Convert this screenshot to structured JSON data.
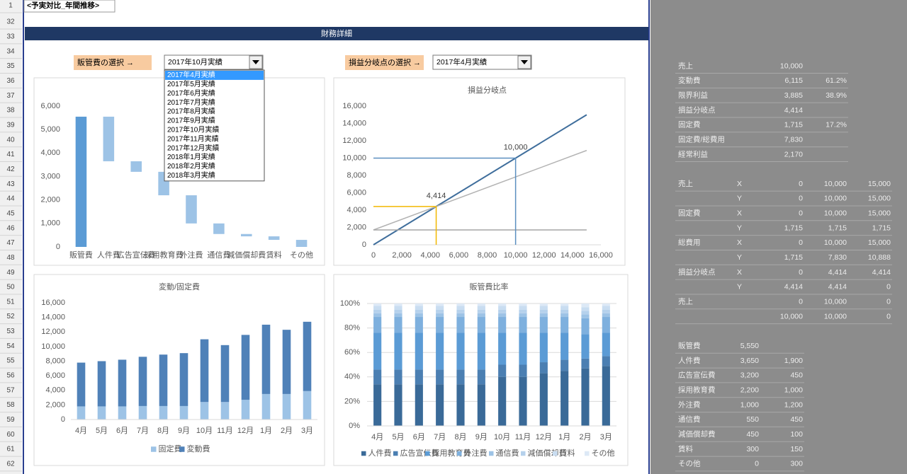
{
  "sheet": {
    "row_numbers": [
      1,
      32,
      33,
      34,
      35,
      36,
      37,
      38,
      39,
      40,
      41,
      42,
      43,
      44,
      45,
      46,
      47,
      48,
      49,
      50,
      51,
      52,
      53,
      54,
      55,
      56,
      57,
      58,
      59,
      60,
      61,
      62
    ],
    "title": "<予実対比_年間推移>",
    "banner": "財務詳細"
  },
  "controls": {
    "sga_label": "販管費の選択 →",
    "sga_selected": "2017年10月実績",
    "sga_options": [
      "2017年4月実績",
      "2017年5月実績",
      "2017年6月実績",
      "2017年7月実績",
      "2017年8月実績",
      "2017年9月実績",
      "2017年10月実績",
      "2017年11月実績",
      "2017年12月実績",
      "2018年1月実績",
      "2018年2月実績",
      "2018年3月実績"
    ],
    "be_label": "損益分岐点の選択 →",
    "be_selected": "2017年4月実績"
  },
  "chart_data": [
    {
      "type": "waterfall",
      "categories": [
        "販管費",
        "人件費",
        "広告宣伝費",
        "採用教育費",
        "外注費",
        "通信費",
        "減価償却費",
        "賃料",
        "その他"
      ],
      "bases": [
        0,
        3650,
        3200,
        2200,
        1000,
        550,
        450,
        300,
        0
      ],
      "values": [
        5550,
        1900,
        450,
        1000,
        1200,
        450,
        100,
        150,
        300
      ],
      "total_color": "#5b9bd5",
      "color": "#9dc3e6",
      "ylim": [
        0,
        6000
      ],
      "yticks": [
        0,
        {
          "value": 1000,
          "label": "1,000"
        },
        {
          "value": 2000,
          "label": "2,000"
        },
        {
          "value": 3000,
          "label": "3,000"
        },
        {
          "value": 4000,
          "label": "4,000"
        },
        {
          "value": 5000,
          "label": "5,000"
        },
        {
          "value": 6000,
          "label": "6,000"
        }
      ],
      "grid": false
    },
    {
      "type": "line",
      "title": "損益分岐点",
      "xlim": [
        0,
        16000
      ],
      "xticks": [
        0,
        {
          "value": 2000,
          "label": "2,000"
        },
        {
          "value": 4000,
          "label": "4,000"
        },
        {
          "value": 6000,
          "label": "6,000"
        },
        {
          "value": 8000,
          "label": "8,000"
        },
        {
          "value": 10000,
          "label": "10,000"
        },
        {
          "value": 12000,
          "label": "12,000"
        },
        {
          "value": 14000,
          "label": "14,000"
        },
        {
          "value": 16000,
          "label": "16,000"
        }
      ],
      "ylim": [
        0,
        16000
      ],
      "yticks": [
        0,
        {
          "value": 2000,
          "label": "2,000"
        },
        {
          "value": 4000,
          "label": "4,000"
        },
        {
          "value": 6000,
          "label": "6,000"
        },
        {
          "value": 8000,
          "label": "8,000"
        },
        {
          "value": 10000,
          "label": "10,000"
        },
        {
          "value": 12000,
          "label": "12,000"
        },
        {
          "value": 14000,
          "label": "14,000"
        },
        {
          "value": 16000,
          "label": "16,000"
        }
      ],
      "grid": false,
      "series": [
        {
          "color": "#3f6e9c",
          "x": [
            0,
            15000
          ],
          "values": [
            0,
            15000
          ]
        },
        {
          "color": "#b3b3b3",
          "x": [
            0,
            15000
          ],
          "values": [
            1715,
            10888
          ]
        },
        {
          "color": "#a6a6a6",
          "x": [
            0,
            15000
          ],
          "values": [
            1715,
            1715
          ]
        },
        {
          "color": "#f2b800",
          "x": [
            0,
            4414,
            4414
          ],
          "values": [
            4414,
            4414,
            0
          ],
          "value_labels": [
            null,
            "4,414",
            null
          ]
        },
        {
          "color": "#5b8fc0",
          "x": [
            0,
            10000,
            10000
          ],
          "values": [
            10000,
            10000,
            0
          ],
          "value_labels": [
            null,
            "10,000",
            null
          ]
        }
      ]
    },
    {
      "type": "stacked_bar",
      "title": "変動/固定費",
      "categories": [
        "4月",
        "5月",
        "6月",
        "7月",
        "8月",
        "9月",
        "10月",
        "11月",
        "12月",
        "1月",
        "2月",
        "3月"
      ],
      "series": [
        {
          "name": "固定費",
          "color": "#9dc3e6",
          "values": [
            1800,
            1800,
            1800,
            1850,
            1850,
            1850,
            2400,
            2400,
            2700,
            3500,
            3500,
            3900
          ]
        },
        {
          "name": "変動費",
          "color": "#4f81b8",
          "values": [
            6000,
            6200,
            6400,
            6750,
            7050,
            7250,
            8600,
            7800,
            8900,
            9500,
            8800,
            9500
          ]
        }
      ],
      "ylim": [
        0,
        16000
      ],
      "yticks": [
        0,
        {
          "value": 2000,
          "label": "2,000"
        },
        {
          "value": 4000,
          "label": "4,000"
        },
        {
          "value": 6000,
          "label": "6,000"
        },
        {
          "value": 8000,
          "label": "8,000"
        },
        {
          "value": 10000,
          "label": "10,000"
        },
        {
          "value": 12000,
          "label": "12,000"
        },
        {
          "value": 14000,
          "label": "14,000"
        },
        {
          "value": 16000,
          "label": "16,000"
        }
      ],
      "grid": false
    },
    {
      "type": "percent_bar",
      "title": "販管費比率",
      "categories": [
        "4月",
        "5月",
        "6月",
        "7月",
        "8月",
        "9月",
        "10月",
        "11月",
        "12月",
        "1月",
        "2月",
        "3月"
      ],
      "series": [
        {
          "name": "人件費",
          "color": "#3a6a98",
          "values": [
            34,
            34,
            34,
            34,
            34,
            34,
            40,
            40,
            43,
            45,
            47,
            49
          ]
        },
        {
          "name": "広告宣伝費",
          "color": "#4b7fb2",
          "values": [
            12,
            12,
            12,
            12,
            12,
            12,
            10,
            10,
            9,
            9,
            8,
            8
          ]
        },
        {
          "name": "採用教育費",
          "color": "#5b9bd5",
          "values": [
            30,
            30,
            30,
            30,
            30,
            30,
            26,
            26,
            24,
            22,
            20,
            19
          ]
        },
        {
          "name": "外注費",
          "color": "#7eb0de",
          "values": [
            13,
            13,
            13,
            13,
            13,
            13,
            13,
            13,
            13,
            13,
            13,
            13
          ]
        },
        {
          "name": "通信費",
          "color": "#9dc3e6",
          "values": [
            3,
            3,
            3,
            3,
            3,
            3,
            3,
            3,
            3,
            3,
            3,
            3
          ]
        },
        {
          "name": "減価償却費",
          "color": "#b5d1ec",
          "values": [
            3,
            3,
            3,
            3,
            3,
            3,
            3,
            3,
            3,
            3,
            3,
            3
          ]
        },
        {
          "name": "賃料",
          "color": "#c9ddf1",
          "values": [
            3,
            3,
            3,
            3,
            3,
            3,
            3,
            3,
            3,
            3,
            3,
            3
          ]
        },
        {
          "name": "その他",
          "color": "#dde9f6",
          "values": [
            2,
            2,
            2,
            2,
            2,
            2,
            2,
            2,
            2,
            2,
            3,
            2
          ]
        }
      ],
      "ylim": [
        0,
        100
      ],
      "yticks": [
        {
          "value": 0,
          "label": "0%"
        },
        {
          "value": 20,
          "label": "20%"
        },
        {
          "value": 40,
          "label": "40%"
        },
        {
          "value": 60,
          "label": "60%"
        },
        {
          "value": 80,
          "label": "80%"
        },
        {
          "value": 100,
          "label": "100%"
        }
      ],
      "grid": true
    }
  ],
  "side_table": {
    "sections": [
      {
        "rows": [
          [
            "売上",
            "10,000",
            null
          ],
          [
            "変動費",
            "6,115",
            "61.2%"
          ],
          [
            "限界利益",
            "3,885",
            "38.9%"
          ],
          [
            "損益分岐点",
            "4,414",
            null
          ],
          [
            "固定費",
            "1,715",
            "17.2%"
          ],
          [
            "固定費/総費用",
            "7,830",
            null
          ],
          [
            "経常利益",
            "2,170",
            null
          ]
        ]
      },
      {
        "rows": [
          [
            "売上",
            "X",
            "0",
            "10,000",
            "15,000"
          ],
          [
            null,
            "Y",
            "0",
            "10,000",
            "15,000"
          ],
          [
            "固定費",
            "X",
            "0",
            "10,000",
            "15,000"
          ],
          [
            null,
            "Y",
            "1,715",
            "1,715",
            "1,715"
          ],
          [
            "総費用",
            "X",
            "0",
            "10,000",
            "15,000"
          ],
          [
            null,
            "Y",
            "1,715",
            "7,830",
            "10,888"
          ],
          [
            "損益分岐点",
            "X",
            "0",
            "4,414",
            "4,414"
          ],
          [
            null,
            "Y",
            "4,414",
            "4,414",
            "0"
          ],
          [
            "売上",
            null,
            "0",
            "10,000",
            "0"
          ],
          [
            null,
            null,
            "10,000",
            "10,000",
            "0"
          ]
        ]
      },
      {
        "rows": [
          [
            "販管費",
            "5,550",
            null
          ],
          [
            "人件費",
            "3,650",
            "1,900"
          ],
          [
            "広告宣伝費",
            "3,200",
            "450"
          ],
          [
            "採用教育費",
            "2,200",
            "1,000"
          ],
          [
            "外注費",
            "1,000",
            "1,200"
          ],
          [
            "通信費",
            "550",
            "450"
          ],
          [
            "減価償却費",
            "450",
            "100"
          ],
          [
            "賃料",
            "300",
            "150"
          ],
          [
            "その他",
            "0",
            "300"
          ]
        ]
      }
    ]
  }
}
